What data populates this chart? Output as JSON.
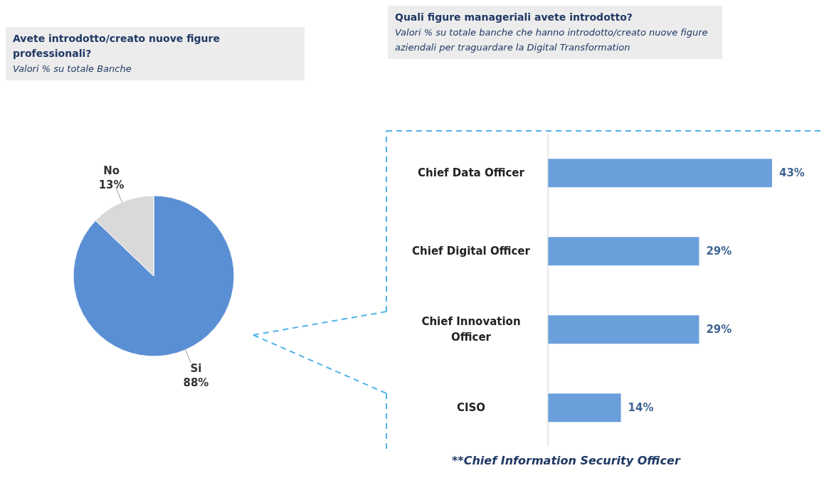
{
  "chart_data": [
    {
      "type": "pie",
      "title": "Avete introdotto/creato nuove figure professionali?",
      "subtitle": "Valori % su totale Banche",
      "categories": [
        "Si",
        "No"
      ],
      "values": [
        88,
        13
      ],
      "colors": [
        "#5b8fd3",
        "#d9d9d9"
      ],
      "value_labels": [
        "88%",
        "13%"
      ]
    },
    {
      "type": "bar",
      "orientation": "horizontal",
      "title": "Quali figure manageriali avete introdotto?",
      "subtitle": "Valori % su totale banche che hanno introdotto/creato nuove figure aziendali per traguardare la Digital Transformation",
      "categories": [
        "Chief Data Officer",
        "Chief Digital Officer",
        "Chief Innovation Officer",
        "CISO"
      ],
      "values": [
        43,
        29,
        29,
        14
      ],
      "color": "#6a9fdc",
      "value_labels": [
        "43%",
        "29%",
        "29%",
        "14%"
      ],
      "annotations": [
        "**Chief Information Security Officer"
      ]
    }
  ]
}
